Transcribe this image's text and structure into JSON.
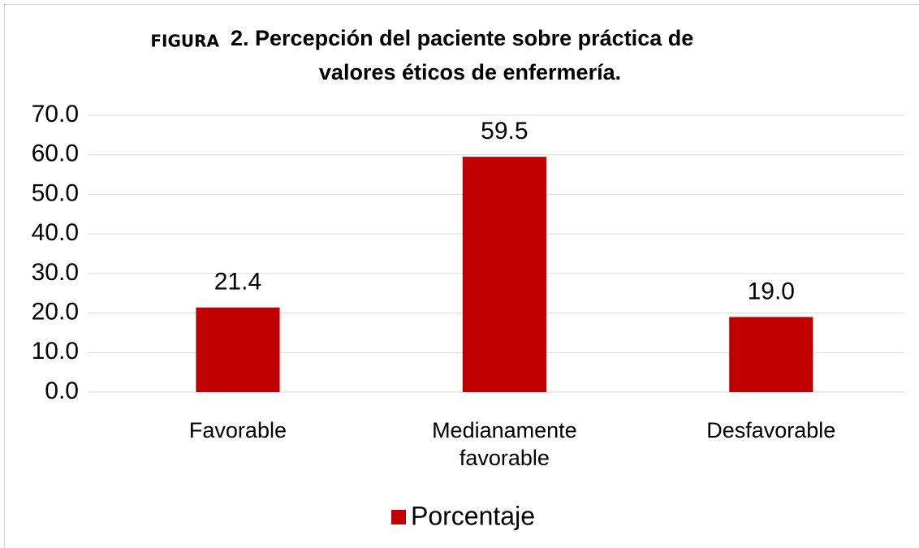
{
  "chart_data": {
    "type": "bar",
    "title": [
      "FIGURA",
      "2. Percepción del paciente sobre práctica de",
      "valores éticos de enfermería."
    ],
    "categories": [
      "Favorable",
      "Medianamente favorable",
      "Desfavorable"
    ],
    "series": [
      {
        "name": "Porcentaje",
        "color": "#c00000",
        "values": [
          21.4,
          59.5,
          19
        ],
        "value_labels": [
          "21.4",
          "59.5",
          "19.0"
        ]
      }
    ],
    "ylim": [
      0,
      70
    ],
    "yticks": [
      {
        "value": 0,
        "label": "0.0"
      },
      {
        "value": 10,
        "label": "10.0"
      },
      {
        "value": 20,
        "label": "20.0"
      },
      {
        "value": 30,
        "label": "30.0"
      },
      {
        "value": 40,
        "label": "40.0"
      },
      {
        "value": 50,
        "label": "50.0"
      },
      {
        "value": 60,
        "label": "60.0"
      },
      {
        "value": 70,
        "label": "70.0"
      }
    ],
    "grid": true,
    "legend": "bottom"
  }
}
